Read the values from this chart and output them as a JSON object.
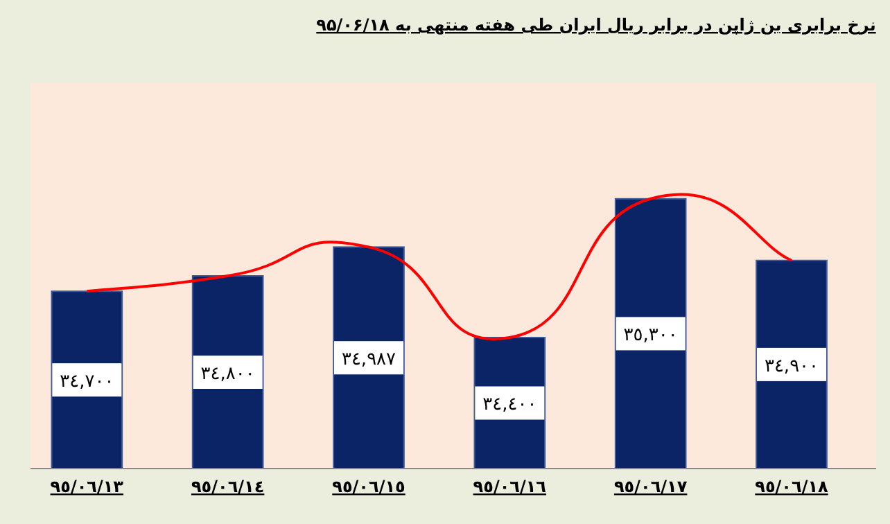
{
  "chart_data": {
    "type": "bar",
    "title": "نرخ برابری ین ژاپن در برابر ریال ایران طی هفته منتهی به ۹۵/۰۶/۱۸",
    "categories": [
      "٩٥/٠٦/١٣",
      "٩٥/٠٦/١٤",
      "٩٥/٠٦/١٥",
      "٩٥/٠٦/١٦",
      "٩٥/٠٦/١٧",
      "٩٥/٠٦/١٨"
    ],
    "series": [
      {
        "color": "#0a2466",
        "values": [
          34700,
          34800,
          34987,
          34400,
          35300,
          34900
        ],
        "value_labels": [
          "٣٤,٧٠٠",
          "٣٤,٨٠٠",
          "٣٤,٩٨٧",
          "٣٤,٤٠٠",
          "٣٥,٣٠٠",
          "٣٤,٩٠٠"
        ]
      },
      {
        "type": "line",
        "color": "#ff0000",
        "values": [
          34700,
          34800,
          34987,
          34400,
          35300,
          34900
        ]
      }
    ],
    "ylim": [
      33550,
      36050
    ],
    "tick_labels": "x"
  }
}
